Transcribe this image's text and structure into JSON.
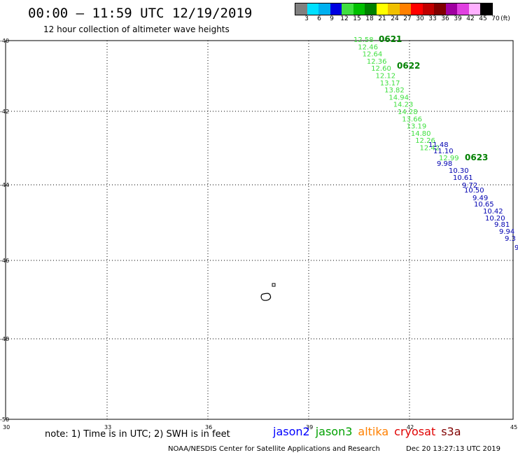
{
  "header": {
    "title": "00:00 – 11:59 UTC 12/19/2019",
    "subtitle": "12 hour collection of altimeter wave heights"
  },
  "color_scale": {
    "colors": [
      "#808080",
      "#00e0ff",
      "#00b0f0",
      "#0000e0",
      "#40e040",
      "#00c000",
      "#008000",
      "#ffff00",
      "#f0c000",
      "#ff8000",
      "#ff0000",
      "#c00000",
      "#800000",
      "#a000a0",
      "#e040e0",
      "#ffb0ff",
      "#000000"
    ],
    "labels": [
      "3",
      "6",
      "9",
      "12",
      "15",
      "18",
      "21",
      "24",
      "27",
      "30",
      "33",
      "36",
      "39",
      "42",
      "45",
      "70",
      "(ft)"
    ]
  },
  "axes": {
    "lat_labels": [
      "-40",
      "-42",
      "-44",
      "-46",
      "-48",
      "-50"
    ],
    "lon_labels": [
      "30",
      "33",
      "36",
      "39",
      "42",
      "45"
    ]
  },
  "tracks": {
    "jason3": {
      "color": "#40e040",
      "values": [
        "12.58",
        "12.46",
        "12.64",
        "12.36",
        "12.60",
        "12.12",
        "13.17",
        "13.82",
        "14.94",
        "14.23",
        "14.28",
        "13.66",
        "13.19",
        "14.80",
        "12.26",
        "12.42",
        "12.99"
      ]
    },
    "jason2": {
      "color": "#0000b0",
      "values": [
        "11.48",
        "11.10",
        "9.98",
        "10.30",
        "10.61",
        "9.72",
        "10.50",
        "9.49",
        "10.65",
        "10.42",
        "10.20",
        "9.81",
        "9.94",
        "9.3",
        "9"
      ]
    },
    "times": [
      "0621",
      "0622",
      "0623"
    ],
    "time_color": "#008000"
  },
  "footer": {
    "note": "note: 1) Time is in UTC; 2) SWH is in feet",
    "legend": [
      {
        "name": "jason2",
        "color": "#0000ff"
      },
      {
        "name": "jason3",
        "color": "#00a000"
      },
      {
        "name": "altika",
        "color": "#ff8000"
      },
      {
        "name": "cryosat",
        "color": "#e00000"
      },
      {
        "name": "s3a",
        "color": "#800000"
      }
    ],
    "credit": "NOAA/NESDIS Center for Satellite Applications and Research",
    "timestamp": "Dec 20 13:27:13 UTC 2019"
  }
}
